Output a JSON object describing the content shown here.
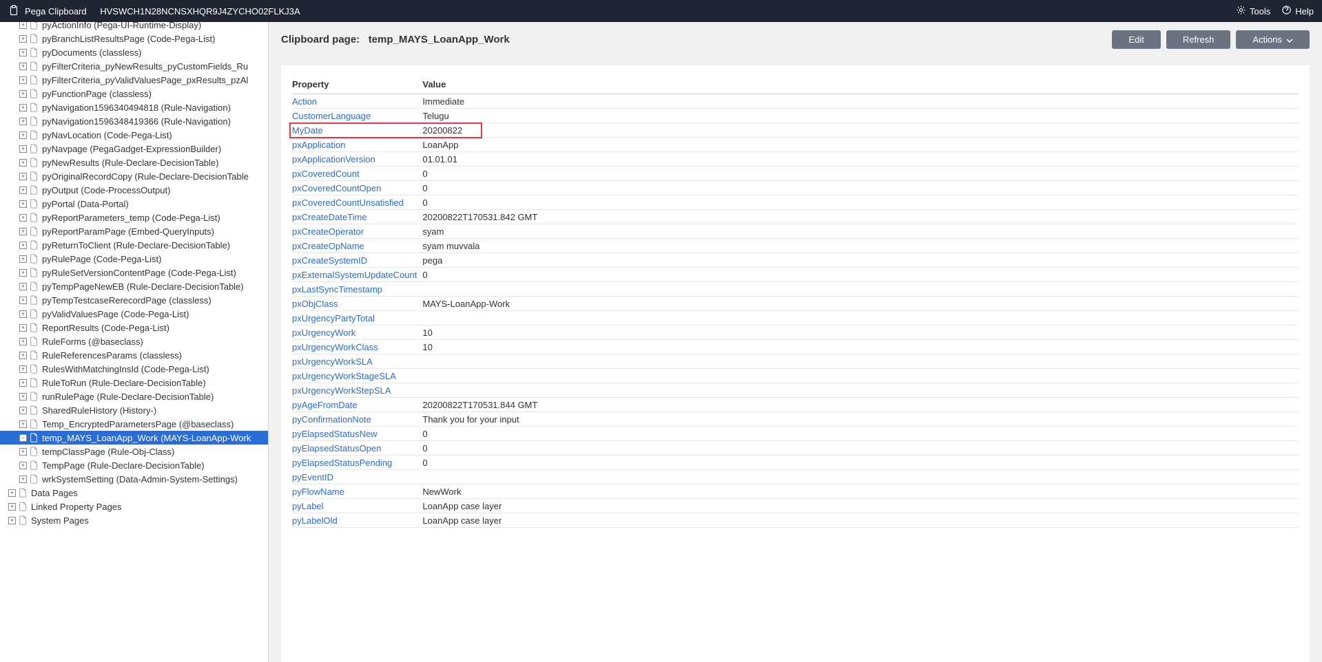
{
  "titlebar": {
    "app_name": "Pega Clipboard",
    "session_id": "HVSWCH1N28NCNSXHQR9J4ZYCHO02FLKJ3A",
    "tools_label": "Tools",
    "help_label": "Help"
  },
  "sidebar": {
    "items": [
      {
        "label": "pyActionInfo (Pega-UI-Runtime-Display)",
        "level": 1,
        "expand": "+",
        "cut_top": true
      },
      {
        "label": "pyBranchListResultsPage (Code-Pega-List)",
        "level": 1,
        "expand": "+"
      },
      {
        "label": "pyDocuments (classless)",
        "level": 1,
        "expand": "+"
      },
      {
        "label": "pyFilterCriteria_pyNewResults_pyCustomFields_Ru",
        "level": 1,
        "expand": "+"
      },
      {
        "label": "pyFilterCriteria_pyValidValuesPage_pxResults_pzAl",
        "level": 1,
        "expand": "+"
      },
      {
        "label": "pyFunctionPage (classless)",
        "level": 1,
        "expand": "+"
      },
      {
        "label": "pyNavigation1596340494818 (Rule-Navigation)",
        "level": 1,
        "expand": "+"
      },
      {
        "label": "pyNavigation1596348419366 (Rule-Navigation)",
        "level": 1,
        "expand": "+"
      },
      {
        "label": "pyNavLocation (Code-Pega-List)",
        "level": 1,
        "expand": "+"
      },
      {
        "label": "pyNavpage (PegaGadget-ExpressionBuilder)",
        "level": 1,
        "expand": "+"
      },
      {
        "label": "pyNewResults (Rule-Declare-DecisionTable)",
        "level": 1,
        "expand": "+"
      },
      {
        "label": "pyOriginalRecordCopy (Rule-Declare-DecisionTable",
        "level": 1,
        "expand": "+"
      },
      {
        "label": "pyOutput (Code-ProcessOutput)",
        "level": 1,
        "expand": "+"
      },
      {
        "label": "pyPortal (Data-Portal)",
        "level": 1,
        "expand": "+"
      },
      {
        "label": "pyReportParameters_temp (Code-Pega-List)",
        "level": 1,
        "expand": "+"
      },
      {
        "label": "pyReportParamPage (Embed-QueryInputs)",
        "level": 1,
        "expand": "+"
      },
      {
        "label": "pyReturnToClient (Rule-Declare-DecisionTable)",
        "level": 1,
        "expand": "+"
      },
      {
        "label": "pyRulePage (Code-Pega-List)",
        "level": 1,
        "expand": "+"
      },
      {
        "label": "pyRuleSetVersionContentPage (Code-Pega-List)",
        "level": 1,
        "expand": "+"
      },
      {
        "label": "pyTempPageNewEB (Rule-Declare-DecisionTable)",
        "level": 1,
        "expand": "+"
      },
      {
        "label": "pyTempTestcaseRerecordPage (classless)",
        "level": 1,
        "expand": "+"
      },
      {
        "label": "pyValidValuesPage (Code-Pega-List)",
        "level": 1,
        "expand": "+"
      },
      {
        "label": "ReportResults (Code-Pega-List)",
        "level": 1,
        "expand": "+"
      },
      {
        "label": "RuleForms (@baseclass)",
        "level": 1,
        "expand": "+"
      },
      {
        "label": "RuleReferencesParams (classless)",
        "level": 1,
        "expand": "+"
      },
      {
        "label": "RulesWithMatchingInsId (Code-Pega-List)",
        "level": 1,
        "expand": "+"
      },
      {
        "label": "RuleToRun (Rule-Declare-DecisionTable)",
        "level": 1,
        "expand": "+"
      },
      {
        "label": "runRulePage (Rule-Declare-DecisionTable)",
        "level": 1,
        "expand": "+"
      },
      {
        "label": "SharedRuleHistory (History-)",
        "level": 1,
        "expand": "+"
      },
      {
        "label": "Temp_EncryptedParametersPage (@baseclass)",
        "level": 1,
        "expand": "+"
      },
      {
        "label": "temp_MAYS_LoanApp_Work (MAYS-LoanApp-Work",
        "level": 1,
        "expand": "−",
        "selected": true
      },
      {
        "label": "tempClassPage (Rule-Obj-Class)",
        "level": 1,
        "expand": "+"
      },
      {
        "label": "TempPage (Rule-Declare-DecisionTable)",
        "level": 1,
        "expand": "+"
      },
      {
        "label": "wrkSystemSetting (Data-Admin-System-Settings)",
        "level": 1,
        "expand": "+"
      },
      {
        "label": "Data Pages",
        "level": 0,
        "expand": "+"
      },
      {
        "label": "Linked Property Pages",
        "level": 0,
        "expand": "+"
      },
      {
        "label": "System Pages",
        "level": 0,
        "expand": "+"
      }
    ]
  },
  "main": {
    "header_label": "Clipboard page:",
    "header_value": "temp_MAYS_LoanApp_Work",
    "buttons": {
      "edit": "Edit",
      "refresh": "Refresh",
      "actions": "Actions"
    },
    "columns": {
      "property": "Property",
      "value": "Value"
    },
    "rows": [
      {
        "prop": "Action",
        "val": "Immediate"
      },
      {
        "prop": "CustomerLanguage",
        "val": "Telugu"
      },
      {
        "prop": "MyDate",
        "val": "20200822",
        "highlight": true
      },
      {
        "prop": "pxApplication",
        "val": "LoanApp"
      },
      {
        "prop": "pxApplicationVersion",
        "val": "01.01.01"
      },
      {
        "prop": "pxCoveredCount",
        "val": "0"
      },
      {
        "prop": "pxCoveredCountOpen",
        "val": "0"
      },
      {
        "prop": "pxCoveredCountUnsatisfied",
        "val": "0"
      },
      {
        "prop": "pxCreateDateTime",
        "val": "20200822T170531.842 GMT"
      },
      {
        "prop": "pxCreateOperator",
        "val": "syam"
      },
      {
        "prop": "pxCreateOpName",
        "val": "syam muvvala"
      },
      {
        "prop": "pxCreateSystemID",
        "val": "pega"
      },
      {
        "prop": "pxExternalSystemUpdateCount",
        "val": "0"
      },
      {
        "prop": "pxLastSyncTimestamp",
        "val": ""
      },
      {
        "prop": "pxObjClass",
        "val": "MAYS-LoanApp-Work"
      },
      {
        "prop": "pxUrgencyPartyTotal",
        "val": ""
      },
      {
        "prop": "pxUrgencyWork",
        "val": "10"
      },
      {
        "prop": "pxUrgencyWorkClass",
        "val": "10"
      },
      {
        "prop": "pxUrgencyWorkSLA",
        "val": ""
      },
      {
        "prop": "pxUrgencyWorkStageSLA",
        "val": ""
      },
      {
        "prop": "pxUrgencyWorkStepSLA",
        "val": ""
      },
      {
        "prop": "pyAgeFromDate",
        "val": "20200822T170531.844 GMT"
      },
      {
        "prop": "pyConfirmationNote",
        "val": "Thank you for your input"
      },
      {
        "prop": "pyElapsedStatusNew",
        "val": "0"
      },
      {
        "prop": "pyElapsedStatusOpen",
        "val": "0"
      },
      {
        "prop": "pyElapsedStatusPending",
        "val": "0"
      },
      {
        "prop": "pyEventID",
        "val": ""
      },
      {
        "prop": "pyFlowName",
        "val": "NewWork"
      },
      {
        "prop": "pyLabel",
        "val": "LoanApp case layer"
      },
      {
        "prop": "pyLabelOld",
        "val": "LoanApp case layer"
      }
    ],
    "highlight_row_index": 2,
    "colors": {
      "link": "#2a6dcc",
      "highlight_border": "#e83a3a",
      "titlebar_bg": "#1f2532",
      "button_bg": "#6b7380",
      "selected_bg": "#296ed6"
    }
  }
}
